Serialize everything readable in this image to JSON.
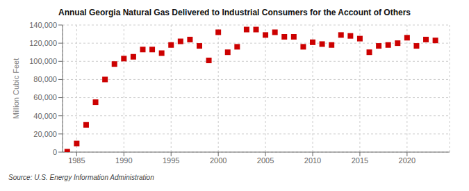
{
  "chart_data": {
    "type": "scatter",
    "title": "Annual Georgia Natural Gas Delivered to Industrial Consumers for the Account of Others",
    "y_label": "Million Cubic Feet",
    "annotations": [
      "Source: U.S. Energy Information Administration"
    ],
    "x": [
      1984,
      1985,
      1986,
      1987,
      1988,
      1989,
      1990,
      1991,
      1992,
      1993,
      1994,
      1995,
      1996,
      1997,
      1998,
      1999,
      2000,
      2001,
      2002,
      2003,
      2004,
      2005,
      2006,
      2007,
      2008,
      2009,
      2010,
      2011,
      2012,
      2013,
      2014,
      2015,
      2016,
      2017,
      2018,
      2019,
      2020,
      2021,
      2022,
      2023
    ],
    "values": [
      500,
      9500,
      30000,
      55000,
      80000,
      97000,
      103000,
      105000,
      113000,
      113000,
      109000,
      118000,
      122000,
      124000,
      117000,
      101000,
      132000,
      110000,
      116000,
      135000,
      135000,
      129000,
      132000,
      127000,
      127000,
      116000,
      121000,
      119000,
      118000,
      129000,
      128000,
      125000,
      110000,
      117000,
      118000,
      120000,
      126000,
      117000,
      124000,
      123000
    ],
    "color": "#cc0000",
    "marker": "square",
    "grid": true,
    "xlim": [
      1983.5,
      2024.5
    ],
    "xticks": [
      1985,
      1990,
      1995,
      2000,
      2005,
      2010,
      2015,
      2020
    ],
    "ylim": [
      0,
      140000
    ],
    "yticks": [
      0,
      {
        "value": 20000,
        "label": "20,000"
      },
      {
        "value": 40000,
        "label": "40,000"
      },
      {
        "value": 60000,
        "label": "60,000"
      },
      {
        "value": 80000,
        "label": "80,000"
      },
      {
        "value": 100000,
        "label": "100,000"
      },
      {
        "value": 120000,
        "label": "120,000"
      },
      {
        "value": 140000,
        "label": "140,000"
      }
    ]
  }
}
